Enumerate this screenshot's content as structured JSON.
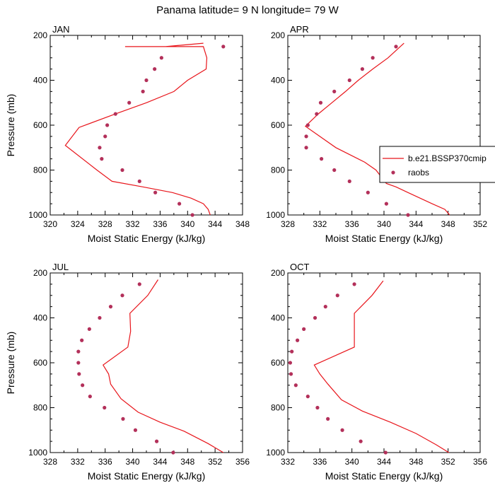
{
  "figure": {
    "title": "Panama  latitude= 9 N longitude= 79 W"
  },
  "legend": {
    "placement": "right of APR panel",
    "model_label": "b.e21.BSSP370cmip",
    "obs_label": "raobs"
  },
  "colors": {
    "model_line": "#e8151b",
    "obs_marker": "#b3305a"
  },
  "chart_data": [
    {
      "type": "line",
      "panel": "JAN",
      "xlabel": "Moist Static Energy (kJ/kg)",
      "ylabel": "Pressure (mb)",
      "xlim": [
        320,
        348
      ],
      "ylim": [
        200,
        1000
      ],
      "y_reversed": true,
      "xticks": [
        320,
        324,
        328,
        332,
        336,
        340,
        344,
        348
      ],
      "yticks": [
        200,
        400,
        600,
        800,
        1000
      ],
      "series": [
        {
          "name": "b.e21.BSSP370cmip",
          "style": "line",
          "x": [
            343.3,
            343.0,
            342.3,
            340.5,
            337.8,
            333.5,
            329.0,
            326.8,
            322.2,
            324.2,
            329.5,
            334.0,
            338.0,
            340.0,
            342.7,
            342.8,
            342.3,
            338.5,
            335.0,
            331.6,
            330.9,
            333.0,
            335.2,
            336.2,
            336.8,
            342.3
          ],
          "y": [
            1000,
            975,
            950,
            925,
            900,
            875,
            850,
            800,
            690,
            610,
            550,
            500,
            450,
            400,
            350,
            300,
            250,
            250,
            250,
            250,
            250,
            250,
            250,
            250,
            250,
            235
          ]
        },
        {
          "name": "raobs",
          "style": "markers",
          "x": [
            340.7,
            338.8,
            335.3,
            333.0,
            330.5,
            327.5,
            327.2,
            328.0,
            328.3,
            329.5,
            331.5,
            333.5,
            334.0,
            335.2,
            336.2,
            345.2
          ],
          "y": [
            1000,
            950,
            900,
            850,
            800,
            750,
            700,
            650,
            600,
            550,
            500,
            450,
            400,
            350,
            300,
            250
          ]
        }
      ]
    },
    {
      "type": "line",
      "panel": "APR",
      "xlabel": "Moist Static Energy (kJ/kg)",
      "ylabel": "",
      "xlim": [
        328,
        352
      ],
      "ylim": [
        200,
        1000
      ],
      "y_reversed": true,
      "xticks": [
        328,
        332,
        336,
        340,
        344,
        348,
        352
      ],
      "yticks": [
        200,
        400,
        600,
        800,
        1000
      ],
      "series": [
        {
          "name": "b.e21.BSSP370cmip",
          "style": "line",
          "x": [
            348.2,
            347.6,
            346.0,
            343.0,
            341.5,
            340.3,
            339.0,
            337.6,
            334.0,
            330.2,
            331.8,
            333.5,
            335.2,
            336.8,
            338.6,
            340.5,
            342.5
          ],
          "y": [
            1000,
            975,
            950,
            900,
            875,
            860,
            800,
            765,
            700,
            605,
            550,
            500,
            450,
            400,
            350,
            300,
            235
          ]
        },
        {
          "name": "raobs",
          "style": "markers",
          "x": [
            343.0,
            340.3,
            338.0,
            335.7,
            333.8,
            332.2,
            330.3,
            330.3,
            330.5,
            331.6,
            332.1,
            333.8,
            335.7,
            337.3,
            338.6,
            341.5
          ],
          "y": [
            1000,
            950,
            900,
            850,
            800,
            750,
            700,
            650,
            600,
            550,
            500,
            450,
            400,
            350,
            300,
            250
          ]
        }
      ]
    },
    {
      "type": "line",
      "panel": "JUL",
      "xlabel": "Moist Static Energy (kJ/kg)",
      "ylabel": "Pressure (mb)",
      "xlim": [
        328,
        356
      ],
      "ylim": [
        200,
        1000
      ],
      "y_reversed": true,
      "xticks": [
        328,
        332,
        336,
        340,
        344,
        348,
        352,
        356
      ],
      "yticks": [
        200,
        400,
        600,
        800,
        1000
      ],
      "series": [
        {
          "name": "b.e21.BSSP370cmip",
          "style": "line",
          "x": [
            353.2,
            351.0,
            347.5,
            344.0,
            340.8,
            338.3,
            336.8,
            336.5,
            335.7,
            339.3,
            339.7,
            339.6,
            342.2,
            343.7
          ],
          "y": [
            1000,
            960,
            905,
            865,
            820,
            760,
            695,
            650,
            610,
            530,
            460,
            380,
            300,
            230
          ]
        },
        {
          "name": "raobs",
          "style": "markers",
          "x": [
            345.9,
            343.5,
            340.4,
            338.6,
            335.9,
            333.8,
            332.7,
            332.2,
            332.1,
            332.1,
            332.6,
            333.7,
            335.2,
            336.8,
            338.5,
            341.0
          ],
          "y": [
            1000,
            950,
            900,
            850,
            800,
            750,
            700,
            650,
            600,
            550,
            500,
            450,
            400,
            350,
            300,
            250
          ]
        }
      ]
    },
    {
      "type": "line",
      "panel": "OCT",
      "xlabel": "Moist Static Energy (kJ/kg)",
      "ylabel": "",
      "xlim": [
        332,
        356
      ],
      "ylim": [
        200,
        1000
      ],
      "y_reversed": true,
      "xticks": [
        332,
        336,
        340,
        344,
        348,
        352,
        356
      ],
      "yticks": [
        200,
        400,
        600,
        800,
        1000
      ],
      "series": [
        {
          "name": "b.e21.BSSP370cmip",
          "style": "line",
          "x": [
            352.1,
            350.5,
            348.0,
            344.8,
            341.3,
            338.7,
            337.0,
            336.0,
            335.3,
            340.3,
            340.3,
            340.3,
            342.5,
            343.9
          ],
          "y": [
            1000,
            965,
            915,
            865,
            815,
            765,
            695,
            650,
            610,
            530,
            460,
            380,
            300,
            235
          ]
        },
        {
          "name": "raobs",
          "style": "markers",
          "x": [
            344.2,
            341.1,
            338.8,
            337.0,
            335.7,
            334.5,
            333.0,
            332.4,
            332.3,
            332.5,
            333.2,
            334.0,
            335.4,
            336.7,
            338.2,
            340.3
          ],
          "y": [
            1000,
            950,
            900,
            850,
            800,
            750,
            700,
            650,
            600,
            550,
            500,
            450,
            400,
            350,
            300,
            250
          ]
        }
      ]
    }
  ]
}
